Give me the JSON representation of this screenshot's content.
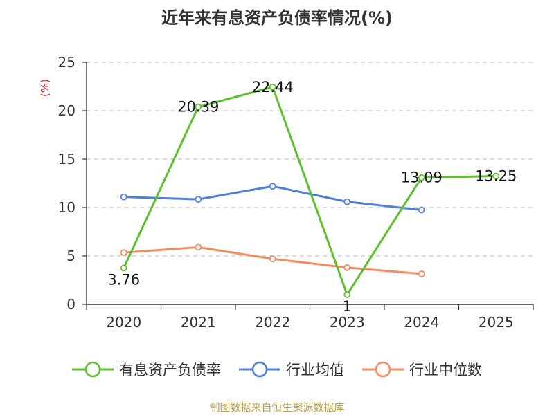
{
  "chart_data": {
    "type": "line",
    "title": "近年来有息资产负债率情况(%)",
    "ylabel": "(%)",
    "categories": [
      "2020",
      "2021",
      "2022",
      "2023",
      "2024",
      "2025"
    ],
    "yticks": [
      "0",
      "5",
      "10",
      "15",
      "20",
      "25"
    ],
    "ylim": [
      0,
      25
    ],
    "grid": true,
    "legend_position": "bottom",
    "series": [
      {
        "name": "有息资产负债率",
        "color": "#5cc02a",
        "values": [
          3.76,
          20.39,
          22.44,
          1,
          13.09,
          13.25
        ],
        "labels": [
          "3.76",
          "20.39",
          "22.44",
          "1",
          "13.09",
          "13.25"
        ]
      },
      {
        "name": "行业均值",
        "color": "#4f7fdc",
        "values": [
          11.1,
          10.85,
          12.2,
          10.6,
          9.75,
          null
        ]
      },
      {
        "name": "行业中位数",
        "color": "#f58b5e",
        "values": [
          5.35,
          5.9,
          4.7,
          3.8,
          3.15,
          null
        ]
      }
    ]
  },
  "footer": {
    "source": "制图数据来自恒生聚源数据库"
  }
}
